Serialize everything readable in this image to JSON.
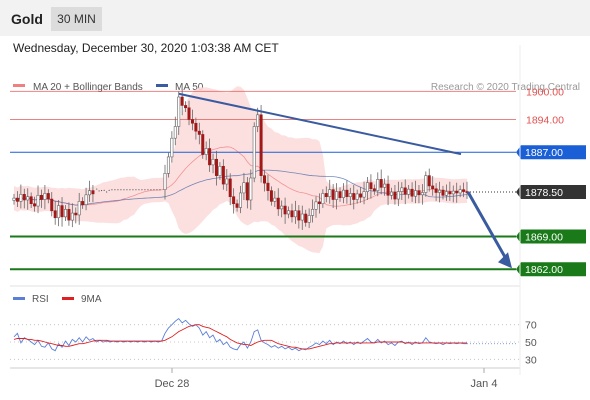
{
  "header": {
    "symbol": "Gold",
    "timeframe": "30 MIN"
  },
  "datetime": "Wednesday, December 30, 2020 1:03:38 AM CET",
  "credit": "Research © 2020 Trading Central",
  "colors": {
    "resistance": "#e05050",
    "pivot": "#1a5fd6",
    "current": "#333333",
    "support": "#1a7a1a",
    "ma20": "#f08080",
    "ma50": "#3a5ba0",
    "bollinger_fill": "#fbdada",
    "trendline": "#3a5ba0",
    "rsi": "#5b7fd8",
    "rsi_ma": "#e02020"
  },
  "chart_data": [
    {
      "type": "candlestick",
      "title": "Gold",
      "legend": [
        {
          "label": "MA 20 + Bollinger Bands",
          "color": "#f08080"
        },
        {
          "label": "MA 50",
          "color": "#3a5ba0"
        }
      ],
      "x_ticks": [
        "Dec 28",
        "Jan 4"
      ],
      "ylim": [
        1855,
        1905
      ],
      "levels": [
        {
          "value": 1900.0,
          "label": "1900.00",
          "kind": "resistance"
        },
        {
          "value": 1894.0,
          "label": "1894.00",
          "kind": "resistance"
        },
        {
          "value": 1887.0,
          "label": "1887.00",
          "kind": "pivot"
        },
        {
          "value": 1878.5,
          "label": "1878.50",
          "kind": "current"
        },
        {
          "value": 1869.0,
          "label": "1869.00",
          "kind": "support"
        },
        {
          "value": 1862.0,
          "label": "1862.00",
          "kind": "support"
        }
      ],
      "closes": [
        1877.2,
        1876.5,
        1878.0,
        1876.8,
        1877.5,
        1876.0,
        1875.5,
        1877.8,
        1876.9,
        1878.2,
        1877.0,
        1874.5,
        1873.0,
        1875.6,
        1873.2,
        1874.8,
        1872.5,
        1874.0,
        1873.6,
        1876.5,
        1875.8,
        1877.9,
        1878.8,
        1878.1,
        1879.2,
        1878.6,
        1879.0,
        1878.5,
        1879.0,
        1879.0,
        1879.0,
        1879.0,
        1879.0,
        1879.0,
        1879.0,
        1879.0,
        1879.0,
        1879.0,
        1879.0,
        1879.0,
        1879.0,
        1879.0,
        1879.0,
        1879.0,
        1882.5,
        1886.0,
        1890.0,
        1892.5,
        1898.8,
        1897.0,
        1896.5,
        1894.0,
        1893.2,
        1891.5,
        1890.8,
        1886.5,
        1887.8,
        1884.3,
        1885.5,
        1882.0,
        1884.0,
        1880.2,
        1881.3,
        1877.5,
        1876.0,
        1875.2,
        1878.3,
        1880.5,
        1876.8,
        1881.5,
        1892.5,
        1895.0,
        1882.0,
        1880.4,
        1878.8,
        1876.5,
        1877.2,
        1874.9,
        1875.5,
        1873.8,
        1874.5,
        1873.2,
        1874.5,
        1872.5,
        1873.8,
        1872.0,
        1873.5,
        1874.8,
        1876.4,
        1876.0,
        1878.2,
        1877.5,
        1879.0,
        1876.9,
        1878.6,
        1877.3,
        1878.9,
        1877.5,
        1878.2,
        1876.9,
        1878.1,
        1877.4,
        1878.6,
        1880.5,
        1879.2,
        1878.8,
        1881.2,
        1879.5,
        1880.2,
        1877.8,
        1878.5,
        1877.0,
        1878.6,
        1879.4,
        1878.0,
        1879.1,
        1877.6,
        1878.8,
        1877.9,
        1878.4,
        1882.0,
        1879.8,
        1879.2,
        1878.4,
        1878.9,
        1877.8,
        1878.6,
        1878.1,
        1878.7,
        1878.3,
        1879.0,
        1878.6,
        1878.5
      ],
      "rsi": {
        "legend": [
          {
            "label": "RSI",
            "color": "#5b7fd8"
          },
          {
            "label": "9MA",
            "color": "#e02020"
          }
        ],
        "ylim": [
          20,
          80
        ],
        "yticks": [
          70,
          50,
          30
        ],
        "rsi_values": [
          56,
          60,
          49,
          55,
          53,
          50,
          47,
          52,
          45,
          44,
          49,
          42,
          40,
          48,
          44,
          51,
          46,
          53,
          50,
          55,
          50,
          56,
          52,
          54,
          50,
          52,
          50,
          51,
          50,
          51,
          50,
          51,
          50,
          51,
          50,
          51,
          50,
          51,
          50,
          51,
          50,
          51,
          50,
          51,
          60,
          66,
          70,
          74,
          77,
          72,
          75,
          71,
          68,
          70,
          66,
          58,
          62,
          55,
          58,
          50,
          53,
          47,
          50,
          44,
          42,
          41,
          47,
          50,
          43,
          50,
          62,
          64,
          52,
          49,
          47,
          44,
          46,
          43,
          45,
          42,
          44,
          41,
          43,
          40,
          42,
          41,
          44,
          46,
          49,
          47,
          51,
          48,
          52,
          47,
          50,
          48,
          51,
          48,
          50,
          47,
          50,
          48,
          51,
          54,
          50,
          49,
          53,
          49,
          51,
          47,
          49,
          46,
          50,
          51,
          48,
          50,
          47,
          50,
          48,
          49,
          55,
          50,
          49,
          48,
          49,
          47,
          49,
          48,
          49,
          48,
          49,
          48,
          48
        ],
        "ma_values": [
          53,
          54,
          54,
          54,
          53,
          53,
          52,
          52,
          51,
          50,
          49,
          48,
          47,
          46,
          46,
          45,
          45,
          46,
          47,
          48,
          48,
          49,
          50,
          51,
          52,
          52,
          52,
          52,
          51,
          51,
          51,
          51,
          51,
          51,
          51,
          51,
          51,
          51,
          51,
          51,
          51,
          51,
          51,
          51,
          52,
          54,
          56,
          59,
          62,
          64,
          66,
          68,
          69,
          70,
          70,
          68,
          67,
          66,
          64,
          62,
          60,
          58,
          56,
          53,
          51,
          49,
          48,
          47,
          47,
          46,
          48,
          50,
          51,
          52,
          52,
          52,
          50,
          48,
          47,
          46,
          45,
          44,
          44,
          43,
          42,
          42,
          42,
          43,
          44,
          45,
          46,
          47,
          48,
          48,
          49,
          49,
          49,
          49,
          49,
          49,
          49,
          49,
          49,
          49,
          49,
          49,
          50,
          50,
          50,
          50,
          50,
          50,
          50,
          50,
          49,
          49,
          49,
          49,
          49,
          49,
          49,
          49,
          49,
          49,
          49,
          49,
          49,
          49,
          49,
          49,
          49,
          49,
          49
        ]
      }
    }
  ]
}
